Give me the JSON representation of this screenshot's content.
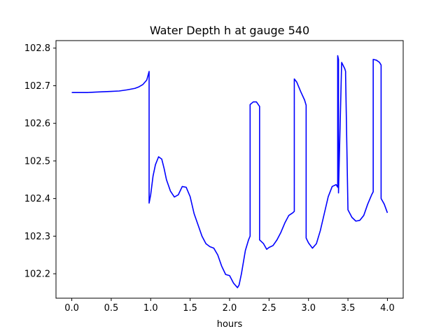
{
  "chart_data": {
    "type": "line",
    "title": "Water Depth h at gauge 540",
    "xlabel": "hours",
    "ylabel": "",
    "xlim": [
      -0.2,
      4.2
    ],
    "ylim": [
      102.135,
      102.82
    ],
    "xticks": [
      0.0,
      0.5,
      1.0,
      1.5,
      2.0,
      2.5,
      3.0,
      3.5,
      4.0
    ],
    "xtick_labels": [
      "0.0",
      "0.5",
      "1.0",
      "1.5",
      "2.0",
      "2.5",
      "3.0",
      "3.5",
      "4.0"
    ],
    "yticks": [
      102.2,
      102.3,
      102.4,
      102.5,
      102.6,
      102.7,
      102.8
    ],
    "ytick_labels": [
      "102.2",
      "102.3",
      "102.4",
      "102.5",
      "102.6",
      "102.7",
      "102.8"
    ],
    "grid": false,
    "line_color": "#0000ff",
    "series": [
      {
        "x": [
          0.0,
          0.1,
          0.2,
          0.3,
          0.4,
          0.5,
          0.6,
          0.7,
          0.8,
          0.85,
          0.9,
          0.95,
          0.98,
          0.98,
          1.0,
          1.03,
          1.06,
          1.1,
          1.14,
          1.17,
          1.2,
          1.25,
          1.3,
          1.35,
          1.4,
          1.45,
          1.5,
          1.55,
          1.6,
          1.65,
          1.7,
          1.75,
          1.8,
          1.85,
          1.9,
          1.95,
          2.0,
          2.05,
          2.1,
          2.12,
          2.15,
          2.2,
          2.24,
          2.26,
          2.26,
          2.3,
          2.34,
          2.37,
          2.38,
          2.38,
          2.43,
          2.47,
          2.5,
          2.55,
          2.6,
          2.65,
          2.7,
          2.75,
          2.8,
          2.82,
          2.82,
          2.85,
          2.9,
          2.95,
          2.97,
          2.97,
          3.0,
          3.05,
          3.1,
          3.15,
          3.2,
          3.25,
          3.3,
          3.35,
          3.37,
          3.37,
          3.38,
          3.38,
          3.42,
          3.46,
          3.47,
          3.47,
          3.5,
          3.55,
          3.6,
          3.65,
          3.7,
          3.75,
          3.8,
          3.82,
          3.82,
          3.86,
          3.9,
          3.92,
          3.92,
          3.96,
          4.0
        ],
        "y": [
          102.682,
          102.682,
          102.682,
          102.683,
          102.684,
          102.685,
          102.686,
          102.689,
          102.693,
          102.697,
          102.703,
          102.715,
          102.738,
          102.388,
          102.41,
          102.46,
          102.49,
          102.511,
          102.505,
          102.48,
          102.45,
          102.42,
          102.404,
          102.41,
          102.432,
          102.43,
          102.405,
          102.36,
          102.33,
          102.3,
          102.28,
          102.272,
          102.268,
          102.25,
          102.22,
          102.198,
          102.195,
          102.175,
          102.163,
          102.17,
          102.2,
          102.262,
          102.29,
          102.3,
          102.65,
          102.657,
          102.657,
          102.648,
          102.645,
          102.29,
          102.28,
          102.265,
          102.27,
          102.275,
          102.29,
          102.31,
          102.335,
          102.355,
          102.362,
          102.366,
          102.718,
          102.71,
          102.685,
          102.662,
          102.648,
          102.295,
          102.282,
          102.268,
          102.28,
          102.315,
          102.36,
          102.405,
          102.432,
          102.437,
          102.43,
          102.78,
          102.77,
          102.415,
          102.762,
          102.745,
          102.738,
          102.729,
          102.37,
          102.35,
          102.34,
          102.342,
          102.355,
          102.385,
          102.41,
          102.418,
          102.77,
          102.768,
          102.762,
          102.755,
          102.4,
          102.385,
          102.362
        ]
      }
    ]
  }
}
